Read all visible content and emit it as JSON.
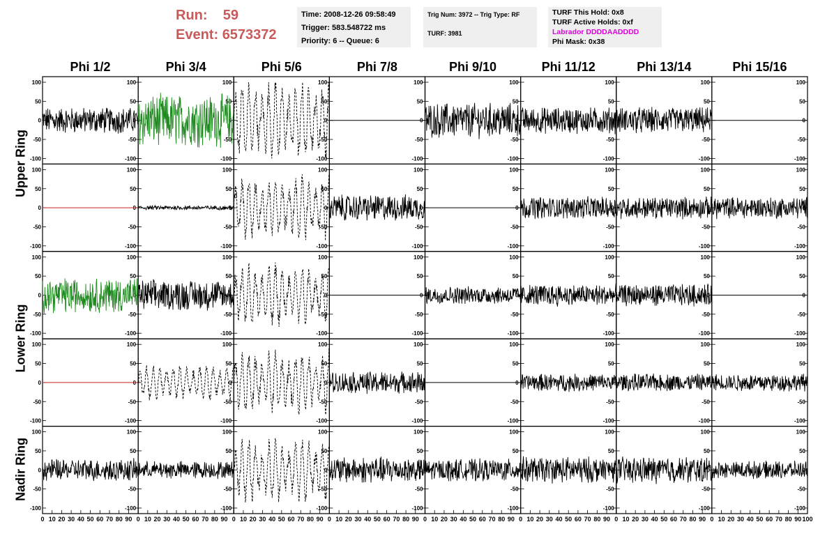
{
  "run": {
    "run_label": "Run:",
    "run_value": "59",
    "event_label": "Event:",
    "event_value": "6573372"
  },
  "info_time": {
    "time": "Time: 2008-12-26 09:58:49",
    "trigger": "Trigger: 583.548722 ms",
    "priority": "Priority: 6 -- Queue: 6"
  },
  "info_trig": {
    "trig": "Trig Num: 3972 -- Trig Type: RF",
    "turf": "TURF: 3981"
  },
  "info_turf": {
    "hold": "TURF This Hold: 0x8",
    "active": "TURF Active Holds: 0xf",
    "labrador": "Labrador DDDDAADDDD",
    "phi_mask": "Phi Mask: 0x38"
  },
  "columns": [
    "Phi 1/2",
    "Phi 3/4",
    "Phi 5/6",
    "Phi 7/8",
    "Phi 9/10",
    "Phi 11/12",
    "Phi 13/14",
    "Phi 15/16"
  ],
  "rows": [
    "Upper Ring",
    "Lower Ring",
    "Nadir Ring"
  ],
  "y_ticks": [
    "100",
    "50",
    "0",
    "-50",
    "-100"
  ],
  "x_ticks": [
    "0",
    "10",
    "20",
    "30",
    "40",
    "50",
    "60",
    "70",
    "80",
    "90",
    "100"
  ],
  "colors": {
    "run": "#c85a5a",
    "green": "#1f8a1f",
    "red": "#cc2222",
    "magenta": "#e000e0",
    "panel_bg": "#efefef"
  },
  "chart_data": {
    "type": "line",
    "xlim": [
      0,
      100
    ],
    "ylim": [
      -100,
      100
    ],
    "panels": [
      [
        "noise-30",
        "green-60",
        "dashed-90",
        "flat",
        "noise-40",
        "noise-30",
        "noise-30",
        "flat"
      ],
      [
        "red-flat",
        "small-5",
        "dashed-70",
        "noise-30",
        "flat",
        "noise-25",
        "noise-25",
        "noise-25"
      ],
      [
        "green-40",
        "noise-35",
        "dashed-70",
        "flat",
        "noise-20",
        "noise-25",
        "noise-25",
        "flat"
      ],
      [
        "red-flat",
        "dashed-40",
        "dashed-70",
        "noise-25",
        "flat",
        "noise-20",
        "noise-20",
        "noise-20"
      ],
      [
        "noise-25",
        "noise-20",
        "dashed-70",
        "noise-30",
        "noise-25",
        "noise-30",
        "noise-30",
        "noise-20"
      ]
    ]
  }
}
